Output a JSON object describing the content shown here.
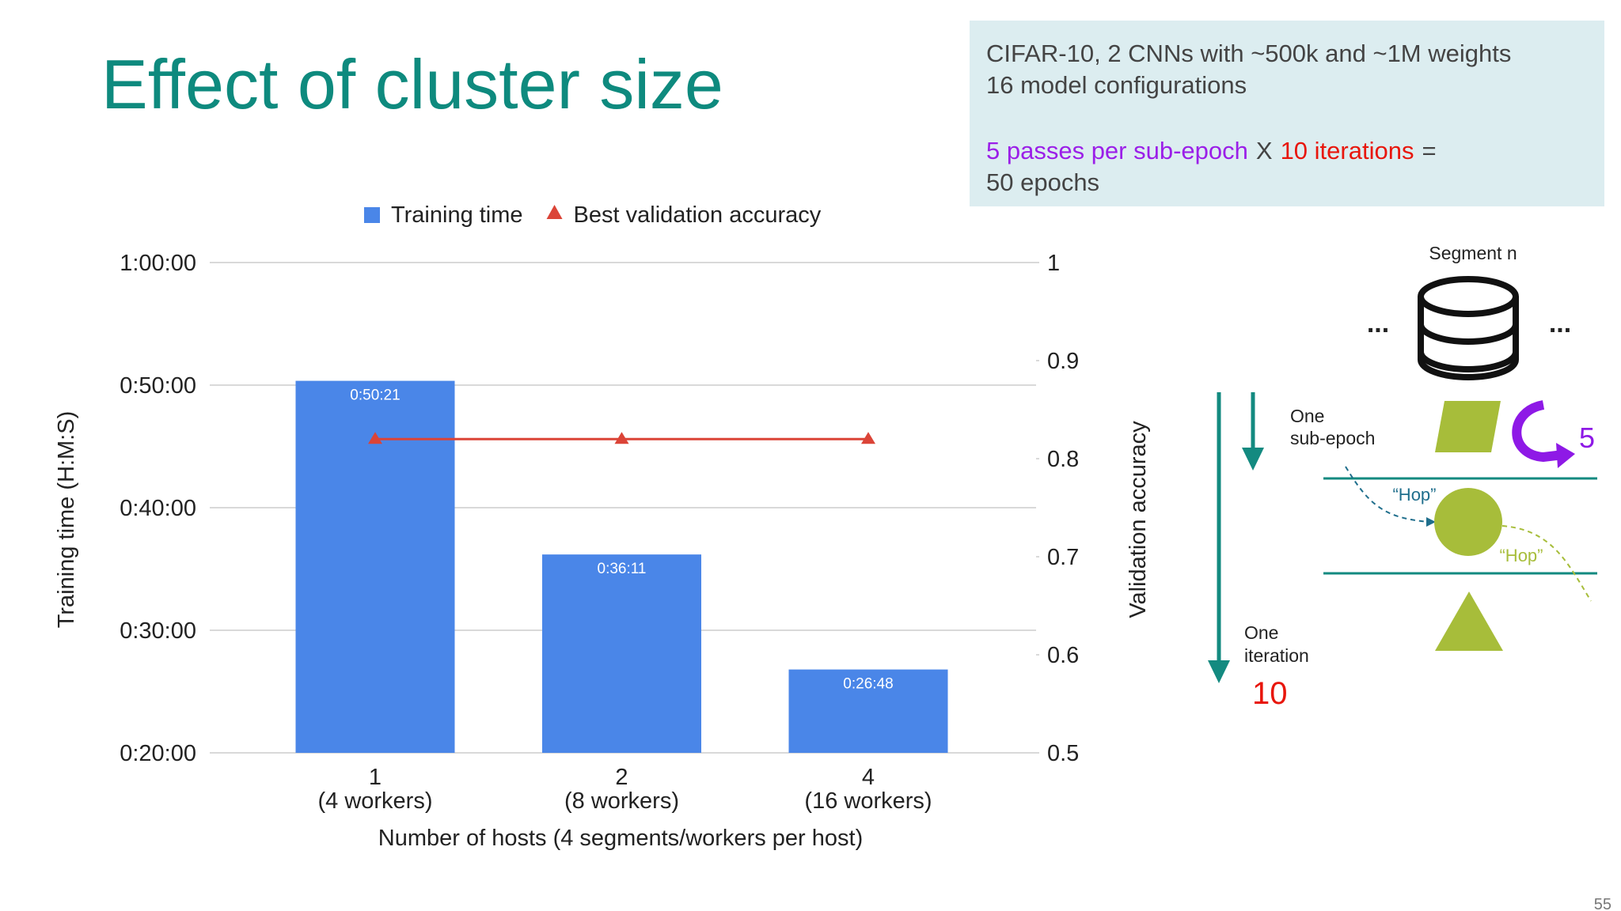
{
  "slide": {
    "title": "Effect of cluster size",
    "page_number": "55"
  },
  "info": {
    "lines": [
      "CIFAR-10, 2 CNNs with ~500k and ~1M weights",
      "16 model configurations"
    ],
    "passes": "5 passes per sub-epoch",
    "times": "X",
    "iterations": "10 iterations",
    "equals": "=",
    "result": "50 epochs"
  },
  "diagram": {
    "segment": "Segment n",
    "dots_left": "...",
    "dots_right": "...",
    "sub_epoch": [
      "One",
      "sub-epoch"
    ],
    "passes": "5",
    "hop_1": "“Hop”",
    "hop_2": "“Hop”",
    "iteration": [
      "One",
      "iteration"
    ],
    "iterations": "10"
  },
  "chart_data": {
    "type": "bar",
    "categories": [
      "1",
      "2",
      "4"
    ],
    "category_sublabels": [
      "(4 workers)",
      "(8 workers)",
      "(16 workers)"
    ],
    "x_label": "Number of hosts (4 segments/workers per host)",
    "y_label": "Training time (H:M:S)",
    "y2_label": "Validation accuracy",
    "series": [
      {
        "name": "Training time",
        "type": "bar",
        "color": "#4a86e8",
        "values": [
          3021,
          2171,
          1608
        ],
        "value_labels": [
          "0:50:21",
          "0:36:11",
          "0:26:48"
        ]
      },
      {
        "name": "Best validation accuracy",
        "type": "line",
        "axis": "y2",
        "color": "#db4437",
        "values": [
          0.82,
          0.82,
          0.82
        ]
      }
    ],
    "ylim": [
      1200,
      3600
    ],
    "yticks": [
      {
        "value": 1200,
        "label": "0:20:00"
      },
      {
        "value": 1800,
        "label": "0:30:00"
      },
      {
        "value": 2400,
        "label": "0:40:00"
      },
      {
        "value": 3000,
        "label": "0:50:00"
      },
      {
        "value": 3600,
        "label": "1:00:00"
      }
    ],
    "y2lim": [
      0.5,
      1
    ],
    "y2ticks": [
      0.5,
      0.6,
      0.7,
      0.8,
      0.9,
      1
    ],
    "grid": true,
    "legend": "top"
  }
}
